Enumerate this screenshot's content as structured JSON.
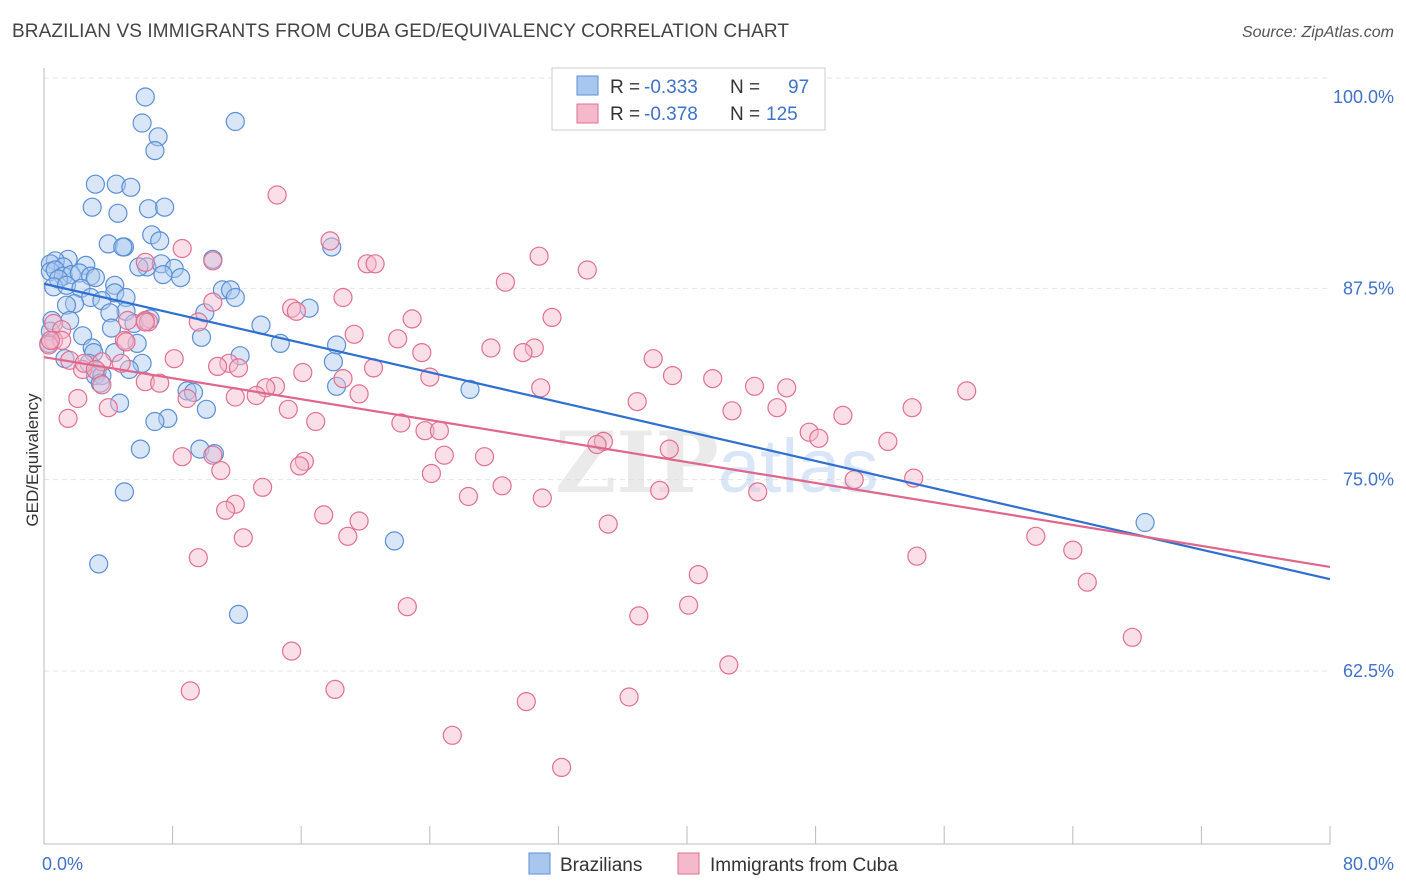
{
  "title": "BRAZILIAN VS IMMIGRANTS FROM CUBA GED/EQUIVALENCY CORRELATION CHART",
  "source": "Source: ZipAtlas.com",
  "watermark": {
    "part1": "ZIP",
    "part2": "atlas"
  },
  "chart_data": {
    "type": "scatter",
    "ylabel": "GED/Equivalency",
    "xlim": [
      0,
      80
    ],
    "ylim": [
      50.5,
      102
    ],
    "x_tick_labels": [
      "0.0%",
      "80.0%"
    ],
    "y_ticks": [
      62.5,
      75.0,
      87.5,
      100.0
    ],
    "y_tick_labels": [
      "62.5%",
      "75.0%",
      "87.5%",
      "100.0%"
    ],
    "grid": true,
    "legend": {
      "placement": "top-center",
      "entries": [
        {
          "r_label": "R = ",
          "r_value": "-0.333",
          "n_label": "N = ",
          "n_value": "97"
        },
        {
          "r_label": "R = ",
          "r_value": "-0.378",
          "n_label": "N = ",
          "n_value": "125"
        }
      ]
    },
    "series": [
      {
        "name": "Brazilians",
        "color": "#5b8fd6",
        "fill": "#a9c7ee",
        "trend": {
          "x": [
            0,
            80
          ],
          "y": [
            87.8,
            68.5
          ]
        },
        "points": [
          [
            6.3,
            100
          ],
          [
            6.1,
            98.3
          ],
          [
            11.9,
            98.4
          ],
          [
            7.1,
            97.4
          ],
          [
            6.9,
            96.5
          ],
          [
            3.2,
            94.3
          ],
          [
            4.5,
            94.3
          ],
          [
            5.4,
            94.1
          ],
          [
            3,
            92.8
          ],
          [
            4.6,
            92.4
          ],
          [
            6.5,
            92.7
          ],
          [
            7.5,
            92.8
          ],
          [
            6.7,
            91
          ],
          [
            7.2,
            90.6
          ],
          [
            4.0,
            90.4
          ],
          [
            5.0,
            90.2
          ],
          [
            4.9,
            90.2
          ],
          [
            17.9,
            90.2
          ],
          [
            1.5,
            89.4
          ],
          [
            0.7,
            89.3
          ],
          [
            0.4,
            89.1
          ],
          [
            1.2,
            88.9
          ],
          [
            2.6,
            89
          ],
          [
            10.5,
            89.4
          ],
          [
            6.4,
            88.9
          ],
          [
            7.3,
            89.1
          ],
          [
            8.1,
            88.8
          ],
          [
            5.9,
            88.9
          ],
          [
            0.4,
            88.6
          ],
          [
            0.7,
            88.7
          ],
          [
            1.2,
            88.3
          ],
          [
            1.7,
            88.4
          ],
          [
            2.2,
            88.5
          ],
          [
            0.9,
            88.1
          ],
          [
            2.9,
            88.3
          ],
          [
            7.4,
            88.4
          ],
          [
            8.5,
            88.2
          ],
          [
            3.2,
            88.2
          ],
          [
            0.6,
            87.6
          ],
          [
            1.4,
            87.7
          ],
          [
            2.3,
            87.5
          ],
          [
            4.4,
            87.7
          ],
          [
            11.1,
            87.4
          ],
          [
            11.6,
            87.4
          ],
          [
            4.4,
            87.2
          ],
          [
            5.1,
            86.9
          ],
          [
            2.9,
            86.9
          ],
          [
            11.9,
            86.9
          ],
          [
            1.9,
            86.5
          ],
          [
            1.4,
            86.4
          ],
          [
            3.6,
            86.7
          ],
          [
            16.5,
            86.2
          ],
          [
            5.1,
            86
          ],
          [
            4.1,
            85.9
          ],
          [
            10.0,
            85.9
          ],
          [
            1.6,
            85.4
          ],
          [
            5.6,
            85.2
          ],
          [
            6.6,
            85.5
          ],
          [
            0.5,
            85.4
          ],
          [
            13.5,
            85.1
          ],
          [
            0.4,
            84.7
          ],
          [
            4.2,
            84.9
          ],
          [
            2.4,
            84.4
          ],
          [
            9.8,
            84.3
          ],
          [
            5.8,
            83.9
          ],
          [
            14.7,
            83.9
          ],
          [
            0.3,
            83.9
          ],
          [
            3.0,
            83.6
          ],
          [
            3.1,
            83.3
          ],
          [
            18.2,
            83.8
          ],
          [
            4.4,
            83.3
          ],
          [
            12.2,
            83.1
          ],
          [
            1.3,
            82.9
          ],
          [
            2.8,
            82.6
          ],
          [
            6.1,
            82.6
          ],
          [
            18.0,
            82.7
          ],
          [
            3.3,
            82.1
          ],
          [
            3.2,
            81.8
          ],
          [
            5.3,
            82.2
          ],
          [
            3.6,
            81.8
          ],
          [
            3.5,
            81.3
          ],
          [
            18.2,
            81.1
          ],
          [
            26.5,
            80.9
          ],
          [
            8.9,
            80.8
          ],
          [
            9.3,
            80.7
          ],
          [
            4.7,
            80
          ],
          [
            10.1,
            79.6
          ],
          [
            7.7,
            79
          ],
          [
            6.9,
            78.8
          ],
          [
            9.7,
            77
          ],
          [
            10.6,
            76.7
          ],
          [
            6.0,
            77
          ],
          [
            5.0,
            74.2
          ],
          [
            68.5,
            72.2
          ],
          [
            21.8,
            71
          ],
          [
            3.4,
            69.5
          ],
          [
            12.1,
            66.2
          ]
        ]
      },
      {
        "name": "Immigrants from Cuba",
        "color": "#e0708f",
        "fill": "#f4b9cb",
        "trend": {
          "x": [
            0,
            80
          ],
          "y": [
            83.0,
            69.3
          ]
        },
        "points": [
          [
            14.5,
            93.6
          ],
          [
            17.8,
            90.6
          ],
          [
            8.6,
            90.1
          ],
          [
            30.8,
            89.6
          ],
          [
            33.8,
            88.7
          ],
          [
            20.1,
            89.1
          ],
          [
            10.5,
            89.3
          ],
          [
            20.6,
            89.1
          ],
          [
            6.3,
            89.2
          ],
          [
            28.7,
            87.9
          ],
          [
            18.6,
            86.9
          ],
          [
            10.5,
            86.6
          ],
          [
            15.4,
            86.2
          ],
          [
            15.7,
            86
          ],
          [
            22.9,
            85.5
          ],
          [
            31.6,
            85.6
          ],
          [
            6.3,
            85.4
          ],
          [
            5.2,
            85.4
          ],
          [
            6.5,
            85.3
          ],
          [
            9.6,
            85.3
          ],
          [
            0.6,
            85.2
          ],
          [
            1.1,
            84.8
          ],
          [
            19.3,
            84.5
          ],
          [
            22.0,
            84.2
          ],
          [
            0.6,
            84.1
          ],
          [
            1.1,
            84.1
          ],
          [
            5.0,
            84.1
          ],
          [
            0.3,
            83.8
          ],
          [
            27.8,
            83.6
          ],
          [
            30.5,
            83.6
          ],
          [
            29.8,
            83.3
          ],
          [
            23.5,
            83.3
          ],
          [
            8.1,
            82.9
          ],
          [
            11.5,
            82.6
          ],
          [
            3.6,
            82.7
          ],
          [
            1.6,
            82.8
          ],
          [
            2.4,
            82.2
          ],
          [
            12.1,
            82.3
          ],
          [
            20.5,
            82.3
          ],
          [
            37.9,
            82.9
          ],
          [
            2.5,
            82.6
          ],
          [
            4.8,
            82.6
          ],
          [
            10.8,
            82.4
          ],
          [
            3.2,
            82.2
          ],
          [
            16.1,
            82
          ],
          [
            24.0,
            81.7
          ],
          [
            18.6,
            81.6
          ],
          [
            39.1,
            81.8
          ],
          [
            6.3,
            81.4
          ],
          [
            7.2,
            81.3
          ],
          [
            41.6,
            81.6
          ],
          [
            44.2,
            81.1
          ],
          [
            46.2,
            81
          ],
          [
            3.6,
            81.2
          ],
          [
            14.4,
            81.1
          ],
          [
            13.8,
            81
          ],
          [
            30.9,
            81
          ],
          [
            13.2,
            80.5
          ],
          [
            11.9,
            80.4
          ],
          [
            19.6,
            80.6
          ],
          [
            8.9,
            80.3
          ],
          [
            2.1,
            80.3
          ],
          [
            36.9,
            80.1
          ],
          [
            42.8,
            79.5
          ],
          [
            45.6,
            79.7
          ],
          [
            49.7,
            79.2
          ],
          [
            54.0,
            79.7
          ],
          [
            57.4,
            80.8
          ],
          [
            15.2,
            79.6
          ],
          [
            4.0,
            79.7
          ],
          [
            1.5,
            79
          ],
          [
            16.9,
            78.8
          ],
          [
            22.2,
            78.7
          ],
          [
            23.7,
            78.2
          ],
          [
            24.6,
            78.2
          ],
          [
            47.6,
            78.1
          ],
          [
            34.8,
            77.5
          ],
          [
            52.5,
            77.5
          ],
          [
            48.2,
            77.7
          ],
          [
            34.4,
            77.3
          ],
          [
            38.9,
            77
          ],
          [
            8.6,
            76.5
          ],
          [
            10.5,
            76.6
          ],
          [
            24.9,
            76.6
          ],
          [
            27.4,
            76.5
          ],
          [
            16.2,
            76.2
          ],
          [
            15.9,
            75.9
          ],
          [
            11.0,
            75.6
          ],
          [
            24.1,
            75.4
          ],
          [
            50.4,
            75.0
          ],
          [
            54.1,
            75.1
          ],
          [
            13.6,
            74.5
          ],
          [
            28.5,
            74.6
          ],
          [
            44.4,
            74.2
          ],
          [
            38.3,
            74.3
          ],
          [
            26.4,
            73.9
          ],
          [
            31.0,
            73.8
          ],
          [
            11.9,
            73.4
          ],
          [
            11.3,
            73.0
          ],
          [
            17.4,
            72.7
          ],
          [
            19.6,
            72.3
          ],
          [
            35.1,
            72.1
          ],
          [
            18.9,
            71.3
          ],
          [
            12.4,
            71.2
          ],
          [
            61.7,
            71.3
          ],
          [
            64.0,
            70.4
          ],
          [
            54.3,
            70
          ],
          [
            9.6,
            69.9
          ],
          [
            40.7,
            68.8
          ],
          [
            64.9,
            68.3
          ],
          [
            22.6,
            66.7
          ],
          [
            40.1,
            66.8
          ],
          [
            37.0,
            66.1
          ],
          [
            67.7,
            64.7
          ],
          [
            42.6,
            62.9
          ],
          [
            15.4,
            63.8
          ],
          [
            9.1,
            61.2
          ],
          [
            18.1,
            61.3
          ],
          [
            30.0,
            60.5
          ],
          [
            36.4,
            60.8
          ],
          [
            25.4,
            58.3
          ],
          [
            32.2,
            56.2
          ],
          [
            0.4,
            84.1
          ],
          [
            6.3,
            85.3
          ],
          [
            5.1,
            84.0
          ]
        ]
      }
    ]
  }
}
